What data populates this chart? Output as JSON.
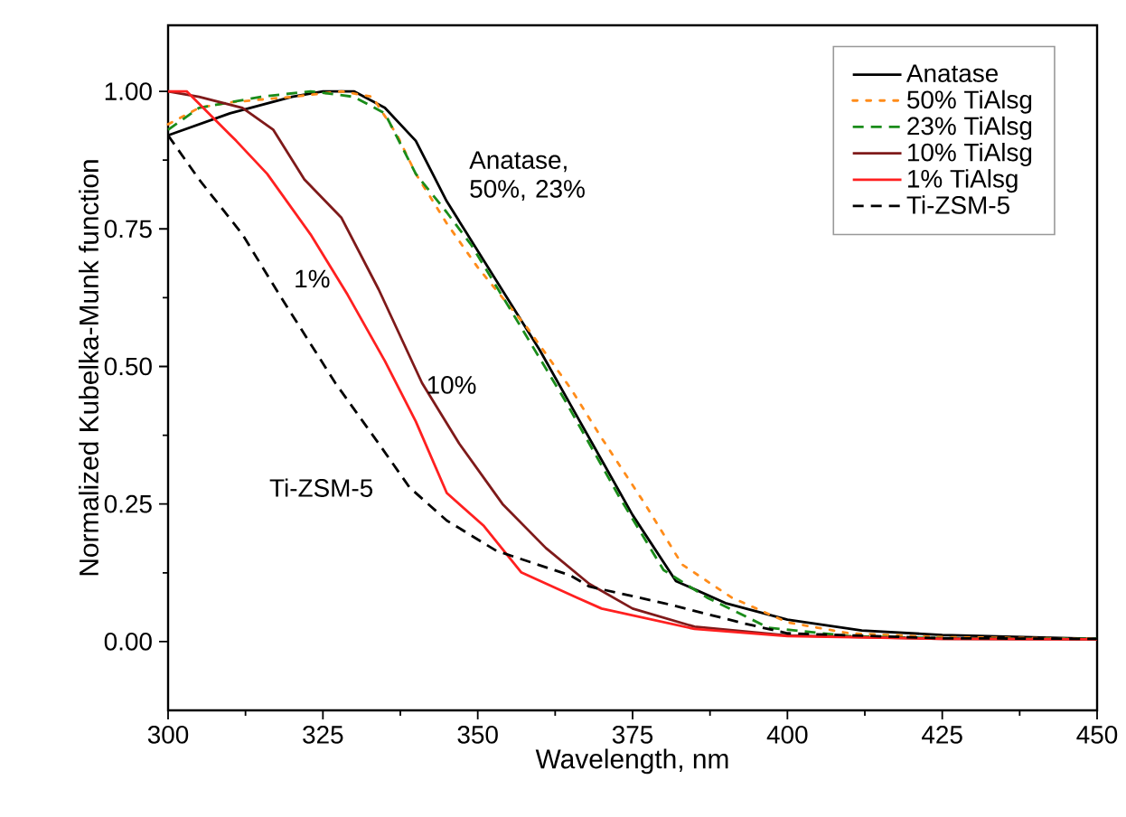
{
  "chart_data": {
    "type": "line",
    "xlabel": "Wavelength, nm",
    "ylabel": "Normalized Kubelka-Munk function",
    "xlim": [
      300,
      450
    ],
    "ylim": [
      -0.125,
      1.12
    ],
    "xticks": [
      300,
      325,
      350,
      375,
      400,
      425,
      450
    ],
    "yticks": [
      {
        "value": 0,
        "label": "0.00"
      },
      {
        "value": 0.25,
        "label": "0.25"
      },
      {
        "value": 0.5,
        "label": "0.50"
      },
      {
        "value": 0.75,
        "label": "0.75"
      },
      {
        "value": 1,
        "label": "1.00"
      }
    ],
    "legend": "top right",
    "grid": false,
    "series": [
      {
        "name": "Anatase",
        "color": "#000000",
        "line_style": "solid",
        "x": [
          300,
          310,
          320,
          325,
          330,
          335,
          340,
          345,
          350,
          355,
          360,
          365,
          370,
          375,
          382,
          390,
          400,
          412,
          425,
          450
        ],
        "values": [
          0.92,
          0.96,
          0.99,
          1.0,
          1.0,
          0.97,
          0.91,
          0.8,
          0.71,
          0.62,
          0.53,
          0.43,
          0.33,
          0.23,
          0.11,
          0.07,
          0.04,
          0.02,
          0.012,
          0.005
        ]
      },
      {
        "name": "50% TiAlsg",
        "color": "#ff8c1a",
        "line_style": "dotted",
        "x": [
          300,
          305,
          310,
          320,
          328,
          333,
          337,
          340,
          345,
          350,
          358,
          365,
          370,
          377,
          383,
          391,
          400,
          410,
          425,
          450
        ],
        "values": [
          0.94,
          0.97,
          0.98,
          0.99,
          1.0,
          0.99,
          0.92,
          0.85,
          0.76,
          0.68,
          0.57,
          0.46,
          0.37,
          0.25,
          0.14,
          0.08,
          0.035,
          0.015,
          0.008,
          0.005
        ]
      },
      {
        "name": "23% TiAlsg",
        "color": "#1a8c1a",
        "line_style": "dashed",
        "x": [
          300,
          305,
          315,
          323,
          330,
          335,
          340,
          345,
          349,
          356,
          364,
          373,
          380,
          387,
          397,
          410,
          425,
          450
        ],
        "values": [
          0.93,
          0.97,
          0.99,
          1.0,
          0.99,
          0.96,
          0.85,
          0.78,
          0.72,
          0.59,
          0.44,
          0.26,
          0.13,
          0.08,
          0.025,
          0.01,
          0.006,
          0.005
        ]
      },
      {
        "name": "10% TiAlsg",
        "color": "#7f1a1a",
        "line_style": "solid",
        "x": [
          300,
          305,
          312,
          317,
          322,
          328,
          334,
          341,
          347,
          354,
          361,
          368,
          375,
          385,
          400,
          425,
          450
        ],
        "values": [
          1.0,
          0.99,
          0.97,
          0.93,
          0.84,
          0.77,
          0.64,
          0.47,
          0.36,
          0.25,
          0.17,
          0.105,
          0.06,
          0.027,
          0.011,
          0.005,
          0.004
        ]
      },
      {
        "name": "1% TiAlsg",
        "color": "#ff2020",
        "line_style": "solid",
        "x": [
          300,
          303,
          311,
          316,
          323,
          329,
          335,
          340,
          345,
          351,
          357,
          366,
          370,
          385,
          400,
          425,
          450
        ],
        "values": [
          1.0,
          1.0,
          0.91,
          0.85,
          0.74,
          0.63,
          0.51,
          0.4,
          0.27,
          0.21,
          0.126,
          0.08,
          0.06,
          0.023,
          0.01,
          0.005,
          0.004
        ]
      },
      {
        "name": "Ti-ZSM-5",
        "color": "#000000",
        "line_style": "dashed",
        "x": [
          300,
          305,
          312,
          318,
          327,
          334,
          339,
          345,
          353,
          365,
          368,
          380,
          393,
          400,
          425,
          450
        ],
        "values": [
          0.92,
          0.84,
          0.74,
          0.63,
          0.47,
          0.36,
          0.28,
          0.22,
          0.165,
          0.12,
          0.1,
          0.07,
          0.033,
          0.015,
          0.006,
          0.005
        ]
      }
    ],
    "annotations": [
      "Anatase, 50%, 23%",
      "1%",
      "10%",
      "Ti-ZSM-5"
    ]
  }
}
